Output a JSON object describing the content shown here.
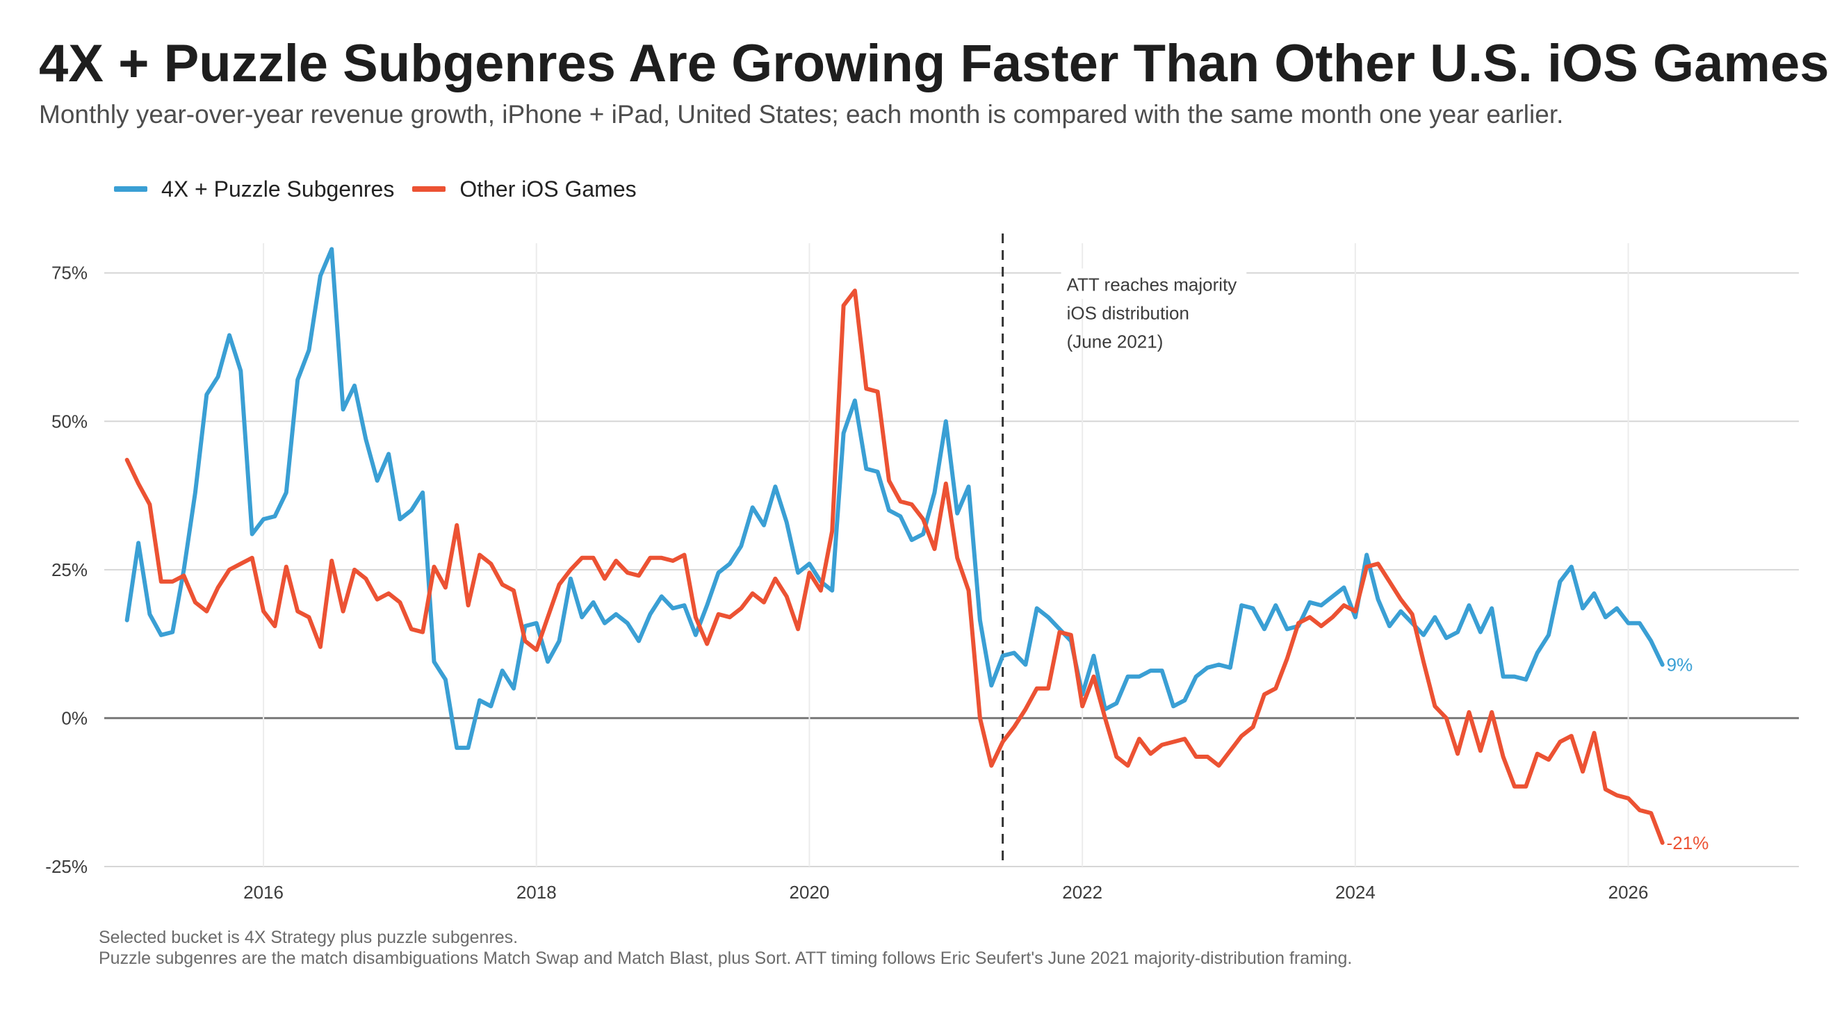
{
  "header": {
    "title": "4X + Puzzle Subgenres Are Growing Faster Than Other U.S. iOS Games",
    "subtitle": "Monthly year-over-year revenue growth, iPhone + iPad, United States; each month is compared with the same month one year earlier."
  },
  "caption": {
    "line1": "Selected bucket is 4X Strategy plus puzzle subgenres.",
    "line2": "Puzzle subgenres are the match disambiguations Match Swap and Match Blast, plus Sort. ATT timing follows Eric Seufert's June 2021 majority-distribution framing."
  },
  "chart_data": {
    "type": "line",
    "x_start": "2015-01",
    "x_step": "month",
    "xlim": [
      "2014-11",
      "2027-04"
    ],
    "ylim": [
      -25,
      80
    ],
    "x_ticks": [
      {
        "label": "2016",
        "at": 2016
      },
      {
        "label": "2018",
        "at": 2018
      },
      {
        "label": "2020",
        "at": 2020
      },
      {
        "label": "2022",
        "at": 2022
      },
      {
        "label": "2024",
        "at": 2024
      },
      {
        "label": "2026",
        "at": 2026
      }
    ],
    "y_ticks": [
      {
        "label": "75%",
        "value": 75
      },
      {
        "label": "50%",
        "value": 50
      },
      {
        "label": "25%",
        "value": 25
      },
      {
        "label": "0%",
        "value": 0
      },
      {
        "label": "-25%",
        "value": -25
      }
    ],
    "grid": true,
    "legend_position": "top-left",
    "annotation": {
      "x": "2021-06",
      "lines": [
        "ATT reaches majority",
        "iOS distribution",
        "(June 2021)"
      ]
    },
    "series": [
      {
        "name": "4X + Puzzle Subgenres",
        "color": "#3a9fd4",
        "end_label": "9%",
        "values": [
          16.5,
          29.5,
          17.5,
          14,
          14.5,
          25,
          38,
          54.5,
          57.5,
          64.5,
          58.5,
          31,
          33.5,
          34,
          38,
          57,
          62,
          74.5,
          79,
          52,
          56,
          47,
          40,
          44.5,
          33.5,
          35,
          38,
          9.5,
          6.5,
          -5,
          -5,
          3,
          2,
          8,
          5,
          15.5,
          16,
          9.5,
          13,
          23.5,
          17,
          19.5,
          16,
          17.5,
          16,
          13,
          17.5,
          20.5,
          18.5,
          19,
          14,
          19,
          24.5,
          26,
          29,
          35.5,
          32.5,
          39,
          33,
          24.5,
          26,
          23,
          21.5,
          48,
          53.5,
          42,
          41.5,
          35,
          34,
          30,
          31,
          38,
          50,
          34.5,
          39,
          16.5,
          5.5,
          10.5,
          11,
          9,
          18.5,
          17,
          15,
          13,
          4,
          10.5,
          1.5,
          2.5,
          7,
          7,
          8,
          8,
          2,
          3,
          7,
          8.5,
          9,
          8.5,
          19,
          18.5,
          15,
          19,
          15,
          15.5,
          19.5,
          19,
          20.5,
          22,
          17,
          27.5,
          20,
          15.5,
          18,
          16,
          14,
          17,
          13.5,
          14.5,
          19,
          14.5,
          18.5,
          7,
          7,
          6.5,
          11,
          14,
          23,
          25.5,
          18.5,
          21,
          17,
          18.5,
          16,
          16,
          13,
          9
        ]
      },
      {
        "name": "Other iOS Games",
        "color": "#ec5233",
        "end_label": "-21%",
        "values": [
          43.5,
          39.5,
          36,
          23,
          23,
          24,
          19.5,
          18,
          22,
          25,
          26,
          27,
          18,
          15.5,
          25.5,
          18,
          17,
          12,
          26.5,
          18,
          25,
          23.5,
          20,
          21,
          19.5,
          15,
          14.5,
          25.5,
          22,
          32.5,
          19,
          27.5,
          26,
          22.5,
          21.5,
          13,
          11.5,
          17,
          22.5,
          25,
          27,
          27,
          23.5,
          26.5,
          24.5,
          24,
          27,
          27,
          26.5,
          27.5,
          17,
          12.5,
          17.5,
          17,
          18.5,
          21,
          19.5,
          23.5,
          20.5,
          15,
          24.5,
          21.5,
          31.5,
          69.5,
          72,
          55.5,
          55,
          40,
          36.5,
          36,
          33.5,
          28.5,
          39.5,
          27,
          21.5,
          0,
          -8,
          -4,
          -1.5,
          1.5,
          5,
          5,
          14.5,
          14,
          2,
          7,
          0,
          -6.5,
          -8,
          -3.5,
          -6,
          -4.5,
          -4,
          -3.5,
          -6.5,
          -6.5,
          -8,
          -5.5,
          -3,
          -1.5,
          4,
          5,
          10,
          16,
          17,
          15.5,
          17,
          19,
          18,
          25.5,
          26,
          23,
          20,
          17.5,
          9.5,
          2,
          0,
          -6,
          1,
          -5.5,
          1,
          -6.5,
          -11.5,
          -11.5,
          -6,
          -7,
          -4,
          -3,
          -9,
          -2.5,
          -12,
          -13,
          -13.5,
          -15.5,
          -16,
          -21
        ]
      }
    ]
  }
}
